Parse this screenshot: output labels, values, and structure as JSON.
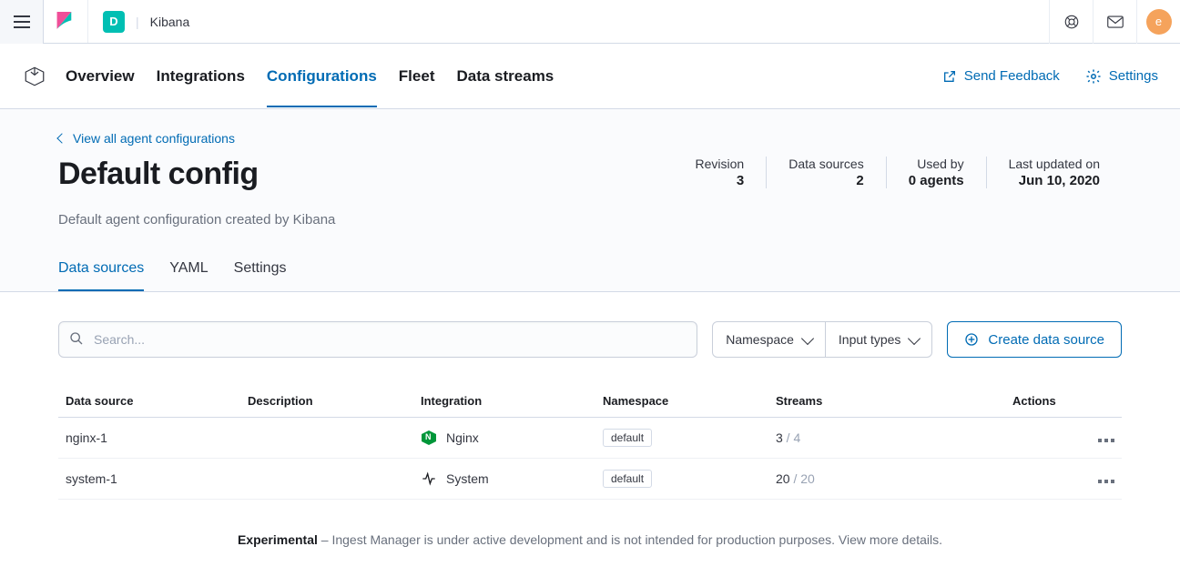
{
  "topbar": {
    "app_letter": "D",
    "app_name": "Kibana",
    "avatar_letter": "e",
    "colors": {
      "accent": "#006bb4",
      "teal": "#00bfb3",
      "avatar": "#f5a35c"
    }
  },
  "nav": {
    "tabs": [
      {
        "label": "Overview",
        "active": false
      },
      {
        "label": "Integrations",
        "active": false
      },
      {
        "label": "Configurations",
        "active": true
      },
      {
        "label": "Fleet",
        "active": false
      },
      {
        "label": "Data streams",
        "active": false
      }
    ],
    "feedback_label": "Send Feedback",
    "settings_label": "Settings"
  },
  "header": {
    "back_label": "View all agent configurations",
    "title": "Default config",
    "description": "Default agent configuration created by Kibana",
    "stats": [
      {
        "label": "Revision",
        "value": "3"
      },
      {
        "label": "Data sources",
        "value": "2"
      },
      {
        "label": "Used by",
        "value": "0 agents"
      },
      {
        "label": "Last updated on",
        "value": "Jun 10, 2020"
      }
    ],
    "sub_tabs": [
      {
        "label": "Data sources",
        "active": true
      },
      {
        "label": "YAML",
        "active": false
      },
      {
        "label": "Settings",
        "active": false
      }
    ]
  },
  "controls": {
    "search_placeholder": "Search...",
    "filters": [
      {
        "label": "Namespace"
      },
      {
        "label": "Input types"
      }
    ],
    "create_label": "Create data source"
  },
  "table": {
    "columns": [
      "Data source",
      "Description",
      "Integration",
      "Namespace",
      "Streams",
      "Actions"
    ],
    "rows": [
      {
        "name": "nginx-1",
        "description": "",
        "integration": "Nginx",
        "integration_icon": "nginx",
        "namespace": "default",
        "streams_active": "3",
        "streams_total": "4"
      },
      {
        "name": "system-1",
        "description": "",
        "integration": "System",
        "integration_icon": "system",
        "namespace": "default",
        "streams_active": "20",
        "streams_total": "20"
      }
    ]
  },
  "footnote": {
    "strong": "Experimental",
    "rest": " – Ingest Manager is under active development and is not intended for production purposes. View more details."
  }
}
